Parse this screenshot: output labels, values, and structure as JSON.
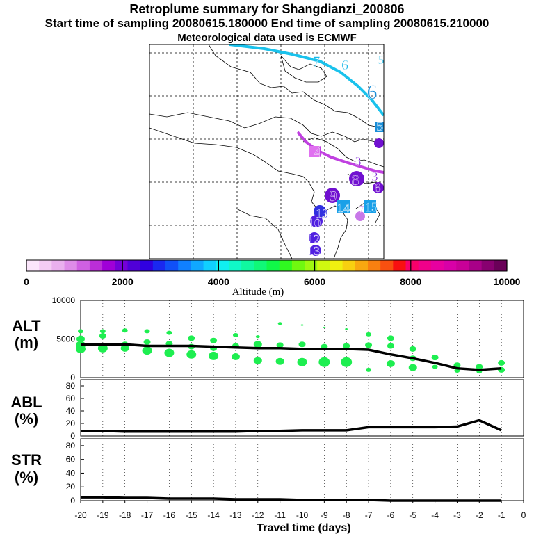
{
  "header": {
    "title": "Retroplume summary for Shangdianzi_200806",
    "sampling": "Start time of sampling 20080615.180000     End time of sampling 20080615.210000",
    "met": "Meteorological data used is ECMWF"
  },
  "colorbar": {
    "ticks": [
      "0",
      "2000",
      "4000",
      "6000",
      "8000",
      "10000"
    ],
    "label": "Altitude (m)",
    "colors": [
      "#fbe6fb",
      "#f4ccf4",
      "#eab0ee",
      "#de8ce8",
      "#cf60e2",
      "#bb2ed8",
      "#a000d8",
      "#7400d8",
      "#5000d8",
      "#3000e0",
      "#1a28f0",
      "#1050f8",
      "#1080ff",
      "#10a8ff",
      "#10d0ff",
      "#10f0f0",
      "#10f8c8",
      "#10f8a0",
      "#10f878",
      "#10f848",
      "#30f820",
      "#70f810",
      "#a0f810",
      "#d0f810",
      "#f0f010",
      "#f8d010",
      "#f8a810",
      "#f88010",
      "#f85010",
      "#f81010",
      "#f8006a",
      "#f0008a",
      "#e800a0",
      "#d800a8",
      "#c80098",
      "#a80088",
      "#880070",
      "#6a0058"
    ]
  },
  "map": {
    "plume_labels": [
      {
        "text": "7",
        "color": "#1ab8e8"
      },
      {
        "text": "6",
        "color": "#1ab8e8"
      },
      {
        "text": "5",
        "color": "#1ab8e8"
      },
      {
        "text": "6",
        "color": "#1a8ed8"
      },
      {
        "text": "5",
        "color": "#1a8ed8"
      },
      {
        "text": "4",
        "color": "#c040e0"
      },
      {
        "text": "3",
        "color": "#7010d0"
      },
      {
        "text": "8",
        "color": "#7010d0"
      },
      {
        "text": "9",
        "color": "#7010d0"
      },
      {
        "text": "3",
        "color": "#7010d0"
      },
      {
        "text": "6",
        "color": "#7010d0"
      },
      {
        "text": "14",
        "color": "#1aa0e8"
      },
      {
        "text": "15",
        "color": "#1aa0e8"
      },
      {
        "text": "13",
        "color": "#3030e0"
      },
      {
        "text": "7",
        "color": "#c878e8"
      },
      {
        "text": "10",
        "color": "#5020e0"
      },
      {
        "text": "12",
        "color": "#5020e0"
      },
      {
        "text": "13",
        "color": "#5020e0"
      }
    ]
  },
  "panels": {
    "alt": {
      "label": "ALT",
      "unit": "(m)"
    },
    "abl": {
      "label": "ABL",
      "unit": "(%)"
    },
    "str": {
      "label": "STR",
      "unit": "(%)"
    }
  },
  "xaxis_label": "Travel time (days)",
  "chart_data": [
    {
      "type": "line",
      "title": "ALT",
      "ylabel": "ALT (m)",
      "xlabel": "Travel time (days)",
      "xlim": [
        -20,
        0
      ],
      "ylim": [
        0,
        10000
      ],
      "yticks": [
        "0",
        "5000",
        "10000"
      ],
      "xticks": [
        "-20",
        "-19",
        "-18",
        "-17",
        "-16",
        "-15",
        "-14",
        "-13",
        "-12",
        "-11",
        "-10",
        "-9",
        "-8",
        "-7",
        "-6",
        "-5",
        "-4",
        "-3",
        "-2",
        "-1",
        "0"
      ],
      "series": [
        {
          "name": "mean altitude",
          "x": [
            -20,
            -19,
            -18,
            -17,
            -16,
            -15,
            -14,
            -13,
            -12,
            -11,
            -10,
            -9,
            -8,
            -7,
            -6,
            -5,
            -4,
            -3,
            -2,
            -1
          ],
          "values": [
            4300,
            4300,
            4300,
            4100,
            4100,
            4100,
            4000,
            3900,
            3800,
            3800,
            3700,
            3700,
            3700,
            3600,
            3000,
            2500,
            1900,
            1200,
            1000,
            1200
          ]
        },
        {
          "name": "particle altitudes (scatter)",
          "color": "#1eee50",
          "x": [
            -20,
            -20,
            -20,
            -20,
            -19,
            -19,
            -19,
            -18,
            -18,
            -18,
            -17,
            -17,
            -17,
            -16,
            -16,
            -16,
            -15,
            -15,
            -15,
            -14,
            -14,
            -14,
            -13,
            -13,
            -13,
            -12,
            -12,
            -12,
            -11,
            -11,
            -11,
            -10,
            -10,
            -10,
            -9,
            -9,
            -9,
            -8,
            -8,
            -8,
            -7,
            -7,
            -7,
            -6,
            -6,
            -6,
            -5,
            -5,
            -5,
            -4,
            -4,
            -3,
            -3,
            -2,
            -2,
            -1,
            -1
          ],
          "values": [
            6000,
            5000,
            4200,
            3700,
            6000,
            5400,
            3800,
            6100,
            4300,
            3800,
            6000,
            4600,
            3500,
            5800,
            4400,
            3200,
            5100,
            4000,
            3000,
            4800,
            3800,
            2800,
            5500,
            4100,
            2700,
            5300,
            4300,
            2200,
            7000,
            4200,
            2100,
            6800,
            4300,
            2000,
            6500,
            4000,
            2000,
            6300,
            4100,
            2000,
            5600,
            4200,
            1000,
            5100,
            4100,
            1800,
            3700,
            2500,
            1300,
            2600,
            1400,
            1600,
            900,
            1400,
            800,
            1900,
            1000
          ],
          "sizes": [
            3,
            5,
            6,
            6,
            3,
            4,
            6,
            3,
            4,
            5,
            3,
            4,
            6,
            3,
            4,
            6,
            4,
            4,
            6,
            4,
            4,
            6,
            3,
            4,
            5,
            2,
            5,
            5,
            2,
            4,
            5,
            1,
            4,
            6,
            1,
            4,
            7,
            1,
            4,
            7,
            3,
            4,
            3,
            4,
            4,
            5,
            4,
            4,
            5,
            4,
            3,
            4,
            3,
            4,
            3,
            4,
            4
          ]
        }
      ]
    },
    {
      "type": "line",
      "title": "ABL",
      "ylabel": "ABL (%)",
      "xlim": [
        -20,
        0
      ],
      "ylim": [
        0,
        90
      ],
      "yticks": [
        "0",
        "20",
        "40",
        "60",
        "80"
      ],
      "series": [
        {
          "name": "ABL fraction",
          "x": [
            -20,
            -19,
            -18,
            -17,
            -16,
            -15,
            -14,
            -13,
            -12,
            -11,
            -10,
            -9,
            -8,
            -7,
            -6,
            -5,
            -4,
            -3,
            -2,
            -1
          ],
          "values": [
            8,
            8,
            7,
            7,
            7,
            7,
            7,
            7,
            8,
            8,
            9,
            9,
            9,
            14,
            14,
            14,
            14,
            15,
            25,
            9
          ]
        }
      ]
    },
    {
      "type": "line",
      "title": "STR",
      "ylabel": "STR (%)",
      "xlim": [
        -20,
        0
      ],
      "ylim": [
        0,
        90
      ],
      "yticks": [
        "0",
        "20",
        "40",
        "60",
        "80"
      ],
      "series": [
        {
          "name": "STR fraction",
          "x": [
            -20,
            -19,
            -18,
            -17,
            -16,
            -15,
            -14,
            -13,
            -12,
            -11,
            -10,
            -9,
            -8,
            -7,
            -6,
            -5,
            -4,
            -3,
            -2,
            -1
          ],
          "values": [
            5,
            5,
            4,
            4,
            3,
            3,
            3,
            2,
            2,
            2,
            1,
            1,
            1,
            1,
            0,
            0,
            0,
            0,
            0,
            0
          ]
        }
      ]
    }
  ]
}
